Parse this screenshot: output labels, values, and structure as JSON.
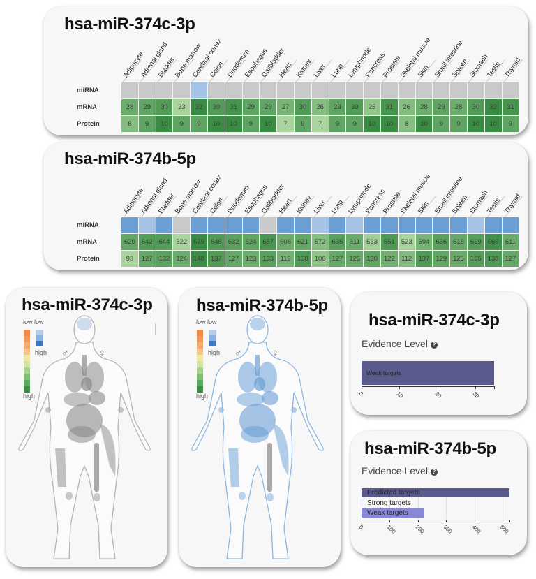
{
  "tissues": [
    "Adipocyte",
    "Adrenal gland",
    "Bladder",
    "Bone marrow",
    "Cerebral cortex",
    "Colon",
    "Duodenum",
    "Esophagus",
    "Gallbladder",
    "Heart",
    "Kidney",
    "Liver",
    "Lung",
    "Lymphnode",
    "Pancreas",
    "Prostate",
    "Skeletal muscle",
    "Skin",
    "Small intestine",
    "Spleen",
    "Stomach",
    "Testis",
    "Thyroid"
  ],
  "row_labels": {
    "mirna": "miRNA",
    "mrna": "mRNA",
    "protein": "Protein"
  },
  "heatmaps": [
    {
      "title": "hsa-miR-374c-3p",
      "mirna_colors": [
        "#c9c9c9",
        "#c9c9c9",
        "#c9c9c9",
        "#c9c9c9",
        "#a5c3e4",
        "#c9c9c9",
        "#c9c9c9",
        "#c9c9c9",
        "#c9c9c9",
        "#c9c9c9",
        "#c9c9c9",
        "#c9c9c9",
        "#c9c9c9",
        "#c9c9c9",
        "#c9c9c9",
        "#c9c9c9",
        "#c9c9c9",
        "#c9c9c9",
        "#c9c9c9",
        "#c9c9c9",
        "#c9c9c9",
        "#c9c9c9",
        "#c9c9c9"
      ],
      "mrna": [
        "28",
        "29",
        "30",
        "23",
        "32",
        "30",
        "31",
        "29",
        "29",
        "27",
        "30",
        "26",
        "29",
        "30",
        "25",
        "31",
        "26",
        "28",
        "29",
        "28",
        "30",
        "32",
        "31"
      ],
      "protein": [
        "8",
        "9",
        "10",
        "9",
        "9",
        "10",
        "10",
        "9",
        "10",
        "7",
        "9",
        "7",
        "9",
        "9",
        "10",
        "10",
        "8",
        "10",
        "9",
        "9",
        "10",
        "10",
        "9"
      ]
    },
    {
      "title": "hsa-miR-374b-5p",
      "mirna_colors": [
        "#6a9fd6",
        "#a5c3e4",
        "#6a9fd6",
        "#c9c9c9",
        "#6a9fd6",
        "#6a9fd6",
        "#6a9fd6",
        "#6a9fd6",
        "#c9c9c9",
        "#6a9fd6",
        "#6a9fd6",
        "#a5c3e4",
        "#6a9fd6",
        "#a5c3e4",
        "#6a9fd6",
        "#6a9fd6",
        "#6a9fd6",
        "#6a9fd6",
        "#6a9fd6",
        "#6a9fd6",
        "#a5c3e4",
        "#6a9fd6",
        "#6a9fd6"
      ],
      "mrna": [
        "620",
        "642",
        "644",
        "522",
        "679",
        "648",
        "632",
        "624",
        "657",
        "608",
        "621",
        "572",
        "635",
        "611",
        "533",
        "651",
        "523",
        "594",
        "636",
        "618",
        "639",
        "669",
        "611"
      ],
      "protein": [
        "93",
        "127",
        "132",
        "124",
        "148",
        "137",
        "127",
        "123",
        "133",
        "119",
        "138",
        "106",
        "127",
        "126",
        "130",
        "122",
        "112",
        "137",
        "129",
        "125",
        "135",
        "138",
        "127"
      ]
    }
  ],
  "body_maps": [
    {
      "title": "hsa-miR-374c-3p",
      "legend_low_1": "low",
      "legend_low_2": "low",
      "legend_high_1": "high",
      "legend_high_2": "high",
      "male_symbol": "♂",
      "female_symbol": "♀",
      "tint": "#8a8a8a"
    },
    {
      "title": "hsa-miR-374b-5p",
      "legend_low_1": "low",
      "legend_low_2": "low",
      "legend_high_1": "high",
      "legend_high_2": "high",
      "male_symbol": "♂",
      "female_symbol": "♀",
      "tint": "#6a9fd6"
    }
  ],
  "evidence": [
    {
      "title": "hsa-miR-374c-3p",
      "label": "Evidence Level",
      "help_icon": "?",
      "bars": [
        {
          "name": "Weak targets",
          "value": 35,
          "color": "#5a5a8c"
        }
      ],
      "ticks": [
        "0",
        "10",
        "20",
        "30"
      ],
      "max": 35
    },
    {
      "title": "hsa-miR-374b-5p",
      "label": "Evidence Level",
      "help_icon": "?",
      "bars": [
        {
          "name": "Predicted targets",
          "value": 525,
          "color": "#5a5a8c"
        },
        {
          "name": "Strong targets",
          "value": 2,
          "color": "#a0a0c8"
        },
        {
          "name": "Weak targets",
          "value": 222,
          "color": "#8888d8"
        }
      ],
      "ticks": [
        "0",
        "100",
        "200",
        "300",
        "400",
        "500"
      ],
      "max": 525
    }
  ],
  "colors": {
    "card_bg": "#f7f7f7",
    "green_dark": "#3e8e48",
    "green_light": "#a7d39a",
    "blue": "#6a9fd6",
    "gray": "#c9c9c9"
  }
}
